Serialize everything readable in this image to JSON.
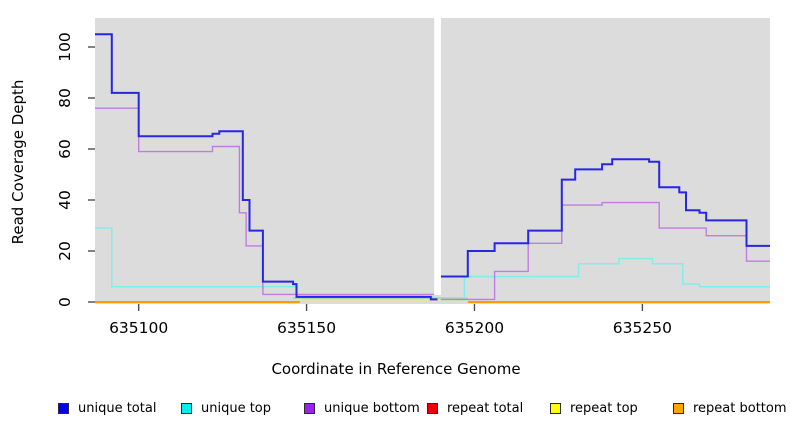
{
  "figure": {
    "xlabel": "Coordinate in Reference Genome",
    "ylabel": "Read Coverage Depth"
  },
  "chart_data": {
    "type": "line",
    "subtype": "step-coverage",
    "title": "",
    "xlabel": "Coordinate in Reference Genome",
    "ylabel": "Read Coverage Depth",
    "x_ticks": [
      635100,
      635150,
      635200,
      635250
    ],
    "y_ticks": [
      0,
      20,
      40,
      60,
      80,
      100
    ],
    "x_range": [
      635087,
      635288
    ],
    "y_range": [
      0,
      112
    ],
    "grid": false,
    "panel_background": "#dcdcdc",
    "coverage_gap": {
      "from": 635188,
      "to": 635190
    },
    "legend": {
      "position": "bottom",
      "entries": [
        {
          "label": "unique total",
          "swatch_color": "#0000ee"
        },
        {
          "label": "unique top",
          "swatch_color": "#00eeee"
        },
        {
          "label": "unique bottom",
          "swatch_color": "#a020f0"
        },
        {
          "label": "repeat total",
          "swatch_color": "#ee0000"
        },
        {
          "label": "repeat top",
          "swatch_color": "#ffff00"
        },
        {
          "label": "repeat bottom",
          "swatch_color": "#ffa500"
        }
      ]
    },
    "series": [
      {
        "name": "repeat bottom",
        "color": "#ff9b00",
        "width": 2,
        "segments": [
          [
            [
              635087,
              0
            ],
            [
              635148,
              0
            ]
          ],
          [
            [
              635198,
              0
            ],
            [
              635288,
              0
            ]
          ]
        ]
      },
      {
        "name": "repeat top",
        "color": "#e8e4a2",
        "width": 1.4,
        "segments": [
          [
            [
              635147,
              0.7
            ],
            [
              635198,
              0.7
            ]
          ]
        ]
      },
      {
        "name": "unlabeled green line",
        "color": "#a5d9a5",
        "width": 1.6,
        "segments": [
          [
            [
              635146,
              1.5
            ],
            [
              635198,
              1.5
            ]
          ]
        ]
      },
      {
        "name": "unique top",
        "color": "#7deeec",
        "width": 1.4,
        "segments": [
          [
            [
              635087,
              29
            ],
            [
              635092,
              6
            ],
            [
              635147,
              2
            ],
            [
              635188,
              2
            ]
          ],
          [
            [
              635190,
              1
            ],
            [
              635197,
              10
            ],
            [
              635231,
              15
            ],
            [
              635243,
              17
            ],
            [
              635253,
              15
            ],
            [
              635262,
              7
            ],
            [
              635267,
              6
            ],
            [
              635288,
              6
            ]
          ]
        ]
      },
      {
        "name": "unique bottom",
        "color": "#c07ce0",
        "width": 1.4,
        "segments": [
          [
            [
              635087,
              76
            ],
            [
              635100,
              59
            ],
            [
              635122,
              61
            ],
            [
              635130,
              35
            ],
            [
              635132,
              22
            ],
            [
              635137,
              3
            ],
            [
              635188,
              3
            ]
          ],
          [
            [
              635190,
              1
            ],
            [
              635206,
              12
            ],
            [
              635216,
              23
            ],
            [
              635226,
              38
            ],
            [
              635238,
              39
            ],
            [
              635255,
              29
            ],
            [
              635269,
              26
            ],
            [
              635281,
              16
            ],
            [
              635288,
              16
            ]
          ]
        ]
      },
      {
        "name": "unique total",
        "color": "#2626e4",
        "width": 2,
        "segments": [
          [
            [
              635087,
              105
            ],
            [
              635092,
              82
            ],
            [
              635100,
              65
            ],
            [
              635122,
              66
            ],
            [
              635124,
              67
            ],
            [
              635131,
              40
            ],
            [
              635133,
              28
            ],
            [
              635137,
              8
            ],
            [
              635146,
              7
            ],
            [
              635147,
              2
            ],
            [
              635187,
              1
            ],
            [
              635189,
              1
            ]
          ],
          [
            [
              635190,
              10
            ],
            [
              635198,
              20
            ],
            [
              635206,
              23
            ],
            [
              635216,
              28
            ],
            [
              635226,
              48
            ],
            [
              635230,
              52
            ],
            [
              635238,
              54
            ],
            [
              635241,
              56
            ],
            [
              635252,
              55
            ],
            [
              635255,
              45
            ],
            [
              635261,
              43
            ],
            [
              635263,
              36
            ],
            [
              635267,
              35
            ],
            [
              635269,
              32
            ],
            [
              635281,
              22
            ],
            [
              635288,
              22
            ]
          ]
        ]
      }
    ]
  }
}
